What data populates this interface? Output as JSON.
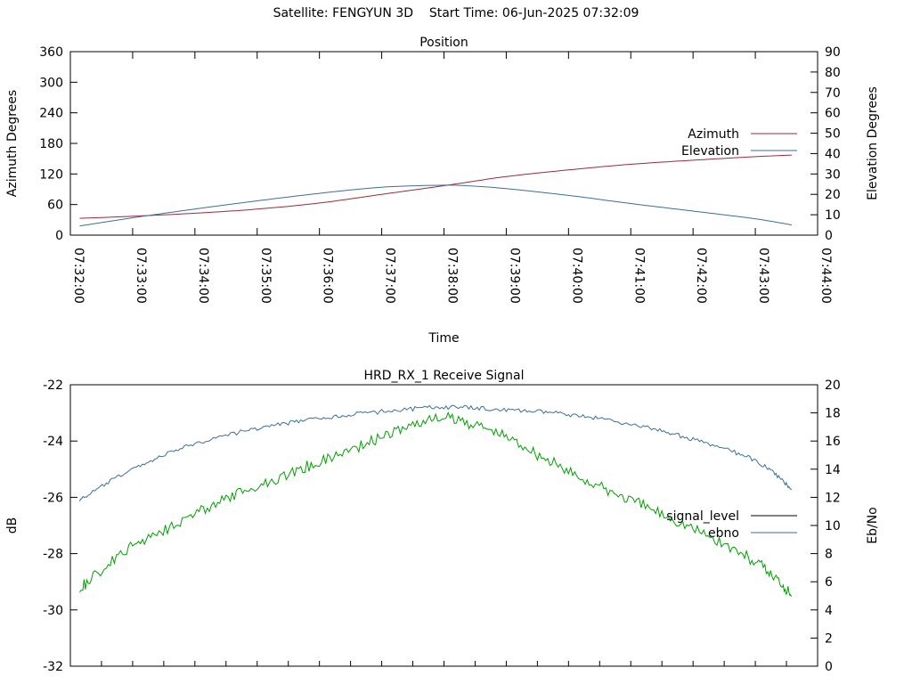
{
  "header": {
    "satellite_label": "Satellite: FENGYUN 3D",
    "start_time_label": "Start Time: 06-Jun-2025 07:32:09"
  },
  "chart_data": [
    {
      "type": "line",
      "title": "Position",
      "xlabel": "Time",
      "ylabel": "Azimuth Degrees",
      "y2label": "Elevation Degrees",
      "x_ticks": [
        "07:32:00",
        "07:33:00",
        "07:34:00",
        "07:35:00",
        "07:36:00",
        "07:37:00",
        "07:38:00",
        "07:39:00",
        "07:40:00",
        "07:41:00",
        "07:42:00",
        "07:43:00",
        "07:44:00"
      ],
      "xlim": [
        "07:32:00",
        "07:44:00"
      ],
      "ylim": [
        0,
        360
      ],
      "y_ticks": [
        0,
        60,
        120,
        180,
        240,
        300,
        360
      ],
      "y2lim": [
        0,
        90
      ],
      "y2_ticks": [
        0,
        10,
        20,
        30,
        40,
        50,
        60,
        70,
        80,
        90
      ],
      "legend_position": "right",
      "grid": false,
      "series": [
        {
          "name": "Azimuth",
          "axis": "y",
          "color": "#9b2a3c",
          "x": [
            "07:32:09",
            "07:33:00",
            "07:34:00",
            "07:35:00",
            "07:36:00",
            "07:37:00",
            "07:38:00",
            "07:38:30",
            "07:39:00",
            "07:40:00",
            "07:41:00",
            "07:42:00",
            "07:43:00",
            "07:43:35"
          ],
          "values": [
            33,
            37,
            43,
            51,
            63,
            80,
            97,
            106,
            115,
            128,
            139,
            147,
            154,
            157
          ]
        },
        {
          "name": "Elevation",
          "axis": "y2",
          "color": "#3c6e9b",
          "x": [
            "07:32:09",
            "07:33:00",
            "07:34:00",
            "07:35:00",
            "07:36:00",
            "07:37:00",
            "07:38:00",
            "07:38:30",
            "07:39:00",
            "07:40:00",
            "07:41:00",
            "07:42:00",
            "07:43:00",
            "07:43:35"
          ],
          "values": [
            4.5,
            8.5,
            12.8,
            16.8,
            20.5,
            23.5,
            24.5,
            24.0,
            22.8,
            19.5,
            15.5,
            11.8,
            8.0,
            5.0
          ]
        }
      ]
    },
    {
      "type": "line",
      "title": "HRD_RX_1 Receive Signal",
      "xlabel": "",
      "ylabel": "dB",
      "y2label": "Eb/No",
      "xlim": [
        "07:32:00",
        "07:44:00"
      ],
      "ylim": [
        -32,
        -22
      ],
      "y_ticks": [
        -32,
        -30,
        -28,
        -26,
        -24,
        -22
      ],
      "y2lim": [
        0,
        20
      ],
      "y2_ticks": [
        0,
        2,
        4,
        6,
        8,
        10,
        12,
        14,
        16,
        18,
        20
      ],
      "legend_position": "right",
      "grid": false,
      "series": [
        {
          "name": "signal_level",
          "axis": "y",
          "color": "#000000",
          "x": [],
          "values": []
        },
        {
          "name": "ebno",
          "axis": "y2",
          "color": "#3c6e9b",
          "x": [
            "07:32:09",
            "07:33:00",
            "07:34:00",
            "07:35:00",
            "07:36:00",
            "07:37:00",
            "07:38:00",
            "07:39:00",
            "07:40:00",
            "07:41:00",
            "07:42:00",
            "07:43:00",
            "07:43:35"
          ],
          "values": [
            11.8,
            14.0,
            15.8,
            16.9,
            17.6,
            18.1,
            18.4,
            18.2,
            17.9,
            17.2,
            16.1,
            14.6,
            12.6
          ]
        },
        {
          "name": "",
          "axis": "y2",
          "color": "#00a000",
          "x": [
            "07:32:09",
            "07:33:00",
            "07:34:00",
            "07:35:00",
            "07:36:00",
            "07:37:00",
            "07:38:00",
            "07:39:00",
            "07:40:00",
            "07:41:00",
            "07:42:00",
            "07:43:00",
            "07:43:35"
          ],
          "values": [
            5.5,
            8.5,
            10.8,
            12.8,
            14.5,
            16.3,
            17.6,
            16.3,
            13.8,
            11.8,
            9.8,
            7.4,
            5.2
          ]
        }
      ]
    }
  ]
}
